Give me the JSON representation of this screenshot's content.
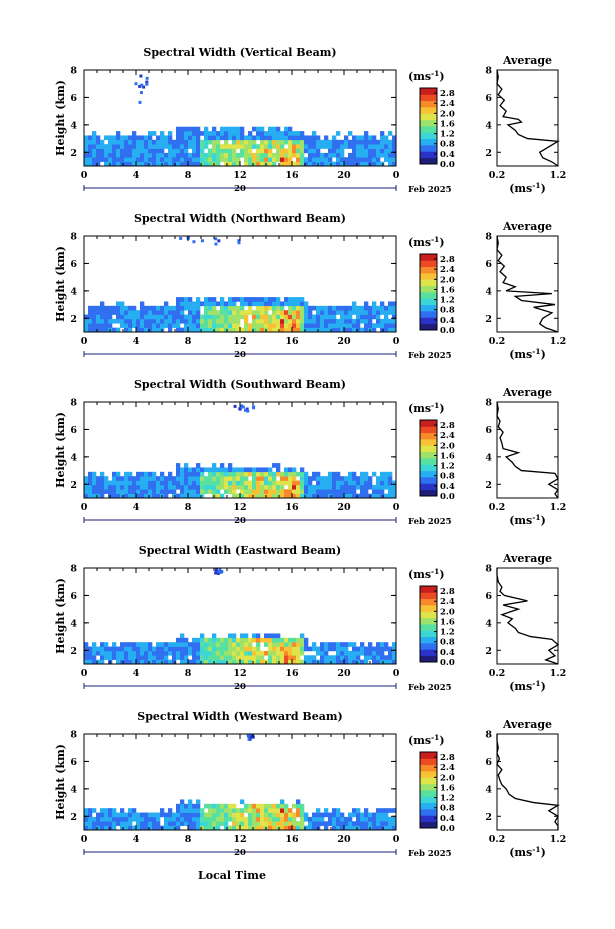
{
  "chart_data": {
    "type": "heatmap",
    "title_main": "",
    "x_title": "Local Time",
    "date_label": "Feb 2025",
    "day_label": "20",
    "x_ticks": [
      "0",
      "4",
      "8",
      "12",
      "16",
      "20",
      "0"
    ],
    "x_range": [
      0,
      24
    ],
    "y_label": "Height (km)",
    "y_ticks": [
      "2",
      "4",
      "6",
      "8"
    ],
    "y_range": [
      1,
      8
    ],
    "colorbar": {
      "unit": "(ms",
      "unit_exp": "-1",
      "unit_close": ")",
      "labels": [
        "0.0",
        "0.4",
        "0.8",
        "1.2",
        "1.6",
        "2.0",
        "2.4",
        "2.8"
      ],
      "range": [
        0,
        3.0
      ],
      "colors": [
        "#1e1e78",
        "#2a33c8",
        "#2f6ff0",
        "#27aef2",
        "#3dd6d6",
        "#58e0a0",
        "#9ee26a",
        "#dfe44a",
        "#f8c236",
        "#f78a2a",
        "#ea4a24",
        "#c81e1e"
      ]
    },
    "profile": {
      "title": "Average",
      "x_ticks": [
        "0.2",
        "1.2"
      ],
      "x_range": [
        0.2,
        1.2
      ],
      "x_unit": "(ms",
      "x_unit_exp": "-1",
      "x_unit_close": ")",
      "y_ticks": [
        "2",
        "4",
        "6",
        "8"
      ]
    },
    "panels": [
      {
        "title": "Spectral Width (Vertical Beam)",
        "layer_top_km": 3.3,
        "upper_band": [
          5.6,
          7.7,
          3.5,
          5.0
        ],
        "profile_heights": [
          1,
          1.3,
          1.6,
          2.0,
          2.4,
          2.8,
          3.0,
          3.3,
          3.6,
          4.0,
          4.2,
          4.4,
          4.6,
          5.0,
          5.4,
          5.8,
          6.2,
          6.6,
          7.0,
          7.5,
          8.0
        ],
        "profile_values": [
          1.2,
          1.1,
          0.95,
          0.9,
          1.05,
          1.2,
          0.7,
          0.55,
          0.5,
          0.38,
          0.6,
          0.55,
          0.3,
          0.35,
          0.25,
          0.32,
          0.22,
          0.28,
          0.2,
          0.22,
          0.2
        ]
      },
      {
        "title": "Spectral Width (Northward Beam)",
        "layer_top_km": 3.0,
        "upper_band": [
          7.5,
          8.0,
          6.5,
          12.0
        ],
        "profile_heights": [
          1,
          1.3,
          1.6,
          2.0,
          2.4,
          2.8,
          3.0,
          3.3,
          3.6,
          3.8,
          4.0,
          4.3,
          4.6,
          5.0,
          5.4,
          5.8,
          6.2,
          6.6,
          7.0,
          7.5,
          8.0
        ],
        "profile_values": [
          1.2,
          1.0,
          0.9,
          0.95,
          1.1,
          0.8,
          1.15,
          0.6,
          0.5,
          1.1,
          0.35,
          0.5,
          0.3,
          0.35,
          0.25,
          0.32,
          0.22,
          0.28,
          0.2,
          0.22,
          0.2
        ]
      },
      {
        "title": "Spectral Width (Southward Beam)",
        "layer_top_km": 2.8,
        "upper_band": [
          7.4,
          8.0,
          11.5,
          13.0
        ],
        "profile_heights": [
          1,
          1.3,
          1.6,
          2.0,
          2.4,
          2.8,
          3.0,
          3.3,
          3.6,
          4.0,
          4.3,
          4.6,
          5.0,
          5.4,
          5.8,
          6.2,
          6.6,
          7.0,
          7.5,
          8.0
        ],
        "profile_values": [
          1.2,
          1.15,
          1.2,
          1.05,
          1.2,
          1.15,
          0.6,
          0.5,
          0.45,
          0.35,
          0.55,
          0.3,
          0.28,
          0.25,
          0.3,
          0.22,
          0.25,
          0.2,
          0.22,
          0.2
        ]
      },
      {
        "title": "Spectral Width (Eastward Beam)",
        "layer_top_km": 2.6,
        "upper_band": [
          7.7,
          8.0,
          10.0,
          10.5
        ],
        "profile_heights": [
          1,
          1.3,
          1.6,
          2.0,
          2.4,
          2.8,
          3.0,
          3.3,
          3.6,
          4.0,
          4.3,
          4.6,
          5.0,
          5.3,
          5.6,
          6.0,
          6.3,
          6.6,
          7.0,
          7.5,
          8.0
        ],
        "profile_values": [
          1.2,
          1.0,
          1.15,
          1.05,
          1.2,
          1.1,
          0.75,
          0.55,
          0.5,
          0.38,
          0.45,
          0.28,
          0.55,
          0.3,
          0.7,
          0.32,
          0.25,
          0.28,
          0.22,
          0.2,
          0.2
        ]
      },
      {
        "title": "Spectral Width (Westward Beam)",
        "layer_top_km": 2.5,
        "upper_band": [
          7.7,
          8.0,
          12.5,
          13.0
        ],
        "profile_heights": [
          1,
          1.3,
          1.6,
          2.0,
          2.4,
          2.8,
          3.0,
          3.3,
          3.6,
          4.0,
          4.3,
          4.6,
          5.0,
          5.4,
          5.8,
          6.2,
          6.6,
          7.0,
          7.5,
          8.0
        ],
        "profile_values": [
          1.2,
          1.2,
          1.15,
          1.2,
          1.05,
          1.2,
          0.8,
          0.5,
          0.4,
          0.35,
          0.28,
          0.25,
          0.22,
          0.28,
          0.2,
          0.24,
          0.2,
          0.22,
          0.2,
          0.2
        ]
      }
    ]
  }
}
